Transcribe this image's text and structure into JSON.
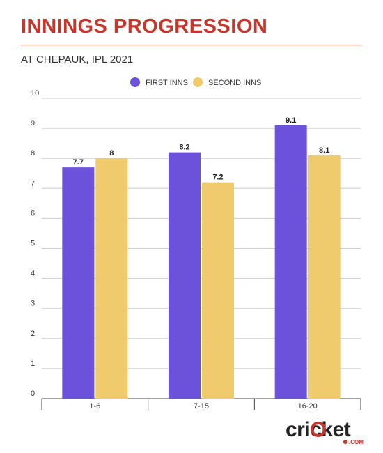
{
  "header": {
    "title": "INNINGS PROGRESSION",
    "subtitle": "AT CHEPAUK, IPL 2021"
  },
  "brand": {
    "logo_text": "cricket",
    "logo_suffix": ".COM"
  },
  "colors": {
    "title": "#c8352b",
    "first_inns": "#6c52db",
    "second_inns": "#efcb6e",
    "grid": "#cccccc",
    "text": "#333333"
  },
  "chart_data": {
    "type": "bar",
    "title": "INNINGS PROGRESSION",
    "subtitle": "AT CHEPAUK, IPL 2021",
    "categories": [
      "1-6",
      "7-15",
      "16-20"
    ],
    "series": [
      {
        "name": "FIRST INNS",
        "values": [
          7.7,
          8.2,
          9.1
        ]
      },
      {
        "name": "SECOND INNS",
        "values": [
          8,
          7.2,
          8.1
        ]
      }
    ],
    "data_labels": [
      [
        "7.7",
        "8.2",
        "9.1"
      ],
      [
        "8",
        "7.2",
        "8.1"
      ]
    ],
    "y_ticks": [
      "0",
      "1",
      "2",
      "3",
      "4",
      "5",
      "6",
      "7",
      "8",
      "9",
      "10"
    ],
    "ylim": [
      0,
      10
    ],
    "xlabel": "",
    "ylabel": "",
    "grid": true,
    "legend_position": "top-center"
  }
}
